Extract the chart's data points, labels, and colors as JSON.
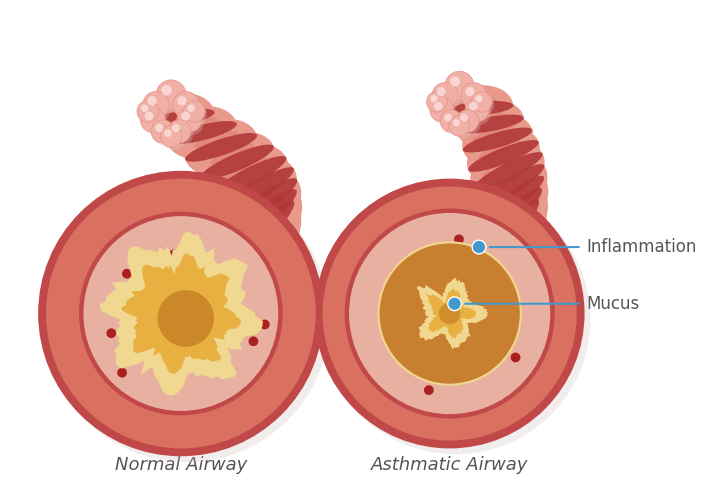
{
  "background_color": "#ffffff",
  "label_normal": "Normal Airway",
  "label_asthma": "Asthmatic Airway",
  "label_inflammation": "Inflammation",
  "label_mucus": "Mucus",
  "label_fontsize": 13,
  "annotation_fontsize": 12,
  "colors": {
    "tube_light": "#e8998a",
    "tube_mid": "#d97060",
    "tube_dark": "#c04848",
    "tube_stripe": "#b03838",
    "outer_circle_dark": "#c04848",
    "outer_circle_mid": "#d97060",
    "outer_circle_light": "#e8998a",
    "inner_tissue": "#e8b0a0",
    "lumen_wall_color": "#f0d890",
    "lumen_fill_light": "#e8b040",
    "lumen_fill_dark": "#c07820",
    "mucus_color": "#c88030",
    "red_dot": "#aa2020",
    "alveoli_main": "#f0b0a8",
    "alveoli_mid": "#e89080",
    "alveoli_highlight": "#fce8e4",
    "annotation_blue": "#4499cc",
    "text_color": "#555555",
    "shadow": "#d0c0c0"
  }
}
